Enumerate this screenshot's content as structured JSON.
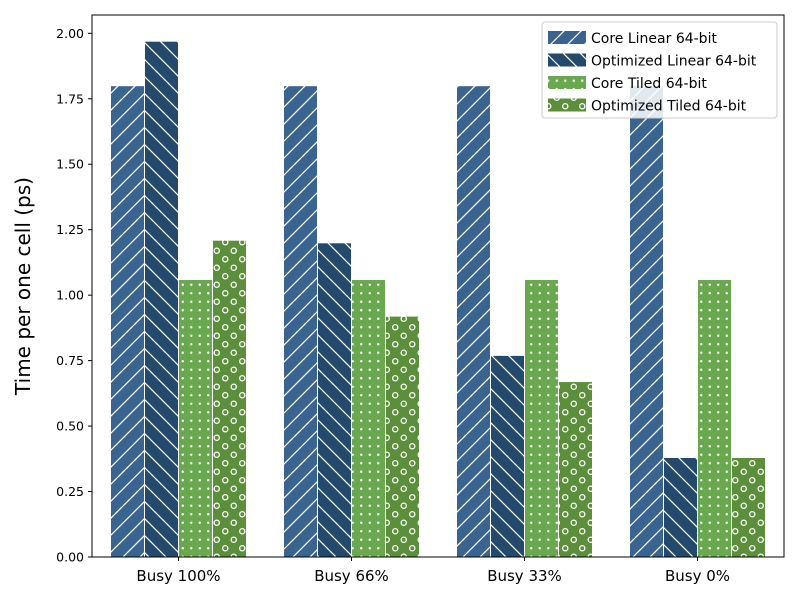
{
  "chart_data": {
    "type": "bar",
    "title": "",
    "xlabel": "",
    "ylabel": "Time per one cell (ps)",
    "ylim": [
      0,
      2.07
    ],
    "yticks": [
      0.0,
      0.25,
      0.5,
      0.75,
      1.0,
      1.25,
      1.5,
      1.75,
      2.0
    ],
    "ytick_labels": [
      "0.00",
      "0.25",
      "0.50",
      "0.75",
      "1.00",
      "1.25",
      "1.50",
      "1.75",
      "2.00"
    ],
    "categories": [
      "Busy 100%",
      "Busy 66%",
      "Busy 33%",
      "Busy 0%"
    ],
    "legend_position": "top-right",
    "grid": false,
    "series": [
      {
        "name": "Core Linear 64-bit",
        "color": "#3a6490",
        "hatch": "forward-diagonal",
        "values": [
          1.8,
          1.8,
          1.8,
          1.8
        ]
      },
      {
        "name": "Optimized Linear 64-bit",
        "color": "#234a6d",
        "hatch": "back-diagonal",
        "values": [
          1.97,
          1.2,
          0.77,
          0.38
        ]
      },
      {
        "name": "Core Tiled 64-bit",
        "color": "#6aa84f",
        "hatch": "dots",
        "values": [
          1.06,
          1.06,
          1.06,
          1.06
        ]
      },
      {
        "name": "Optimized Tiled 64-bit",
        "color": "#5b8f3b",
        "hatch": "rings",
        "values": [
          1.21,
          0.92,
          0.67,
          0.38
        ]
      }
    ]
  }
}
